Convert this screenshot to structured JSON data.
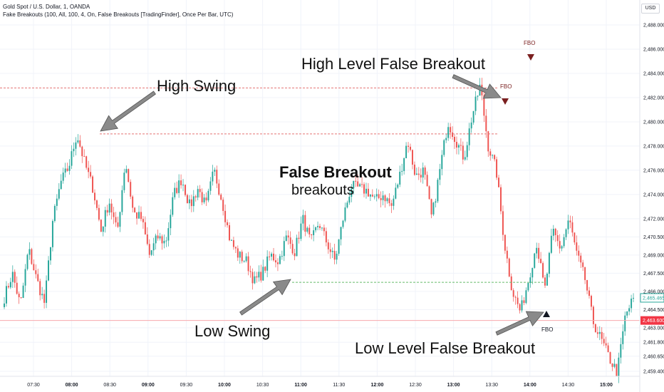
{
  "header": {
    "title": "Gold Spot / U.S. Dollar, 1, OANDA",
    "indicator": "Fake Breakouts (100, All, 100, 4, On, False Breakouts [TradingFinder], Once Per Bar, UTC)"
  },
  "currency_label": "USD",
  "annotations": {
    "high_swing": "High Swing",
    "high_level": "High Level False Breakout",
    "low_swing": "Low Swing",
    "low_level": "Low Level False Breakout",
    "false_breakout_title": "False Breakout",
    "false_breakout_sub": "breakouts",
    "fbo": "FBO"
  },
  "colors": {
    "up": "#26a69a",
    "down": "#ef5350",
    "high_line": "#e57373",
    "low_line": "#66bb6a",
    "fbo_marker": "#7a1f1f",
    "arrow": "#8a8a8a",
    "current_price_bg": "#f23645",
    "high_line_price_bg": "#ffffff",
    "price_line": "#f7a8ad"
  },
  "chart_data": {
    "type": "candlestick",
    "y_ticks": [
      2459.4,
      2460.65,
      2461.8,
      2463.0,
      2464.5,
      2466.0,
      2467.5,
      2469.0,
      2470.5,
      2472.0,
      2474.0,
      2476.0,
      2478.0,
      2480.0,
      2482.0,
      2484.0,
      2486.0,
      2488.0
    ],
    "y_tick_labels": [
      "2,459.400",
      "2,460.650",
      "2,461.800",
      "2,463.000",
      "2,464.500",
      "2,466.000",
      "2,467.500",
      "2,469.000",
      "2,470.500",
      "2,472.000",
      "2,474.000",
      "2,476.000",
      "2,478.000",
      "2,480.000",
      "2,482.000",
      "2,484.000",
      "2,486.000",
      "2,488.000"
    ],
    "x_tick_labels": [
      "07:30",
      "08:00",
      "08:30",
      "09:00",
      "09:30",
      "10:00",
      "10:30",
      "11:00",
      "11:30",
      "12:00",
      "12:30",
      "13:00",
      "13:30",
      "14:00",
      "14:30",
      "15:00"
    ],
    "price_labels": {
      "current": "2,463.600",
      "current_value": 2463.6,
      "last": "2,465.465",
      "last_value": 2465.465
    },
    "levels": {
      "high_level": 2482.8,
      "high_swing": 2479.0,
      "low_swing": 2466.75,
      "low_level": 2463.6
    },
    "path": [
      2465.5,
      2467.5,
      2464.8,
      2469.5,
      2467.0,
      2465.0,
      2471.8,
      2475.0,
      2476.3,
      2479.0,
      2476.5,
      2474.5,
      2471.0,
      2473.5,
      2470.8,
      2476.8,
      2472.5,
      2472.0,
      2469.0,
      2470.5,
      2470.0,
      2474.0,
      2475.3,
      2473.0,
      2474.5,
      2473.0,
      2476.0,
      2473.5,
      2470.2,
      2469.0,
      2468.5,
      2466.8,
      2467.5,
      2469.0,
      2468.5,
      2470.5,
      2469.3,
      2472.0,
      2470.0,
      2471.7,
      2470.0,
      2468.5,
      2472.0,
      2474.7,
      2474.5,
      2474.3,
      2473.5,
      2474.0,
      2473.0,
      2475.5,
      2478.5,
      2475.5,
      2476.0,
      2472.0,
      2476.0,
      2480.0,
      2478.5,
      2477.0,
      2480.5,
      2483.0,
      2478.0,
      2476.0,
      2470.0,
      2466.0,
      2464.3,
      2467.0,
      2470.0,
      2466.0,
      2471.0,
      2469.5,
      2472.0,
      2469.0,
      2467.0,
      2463.5,
      2462.0,
      2460.5,
      2459.3,
      2464.0,
      2465.4
    ]
  }
}
